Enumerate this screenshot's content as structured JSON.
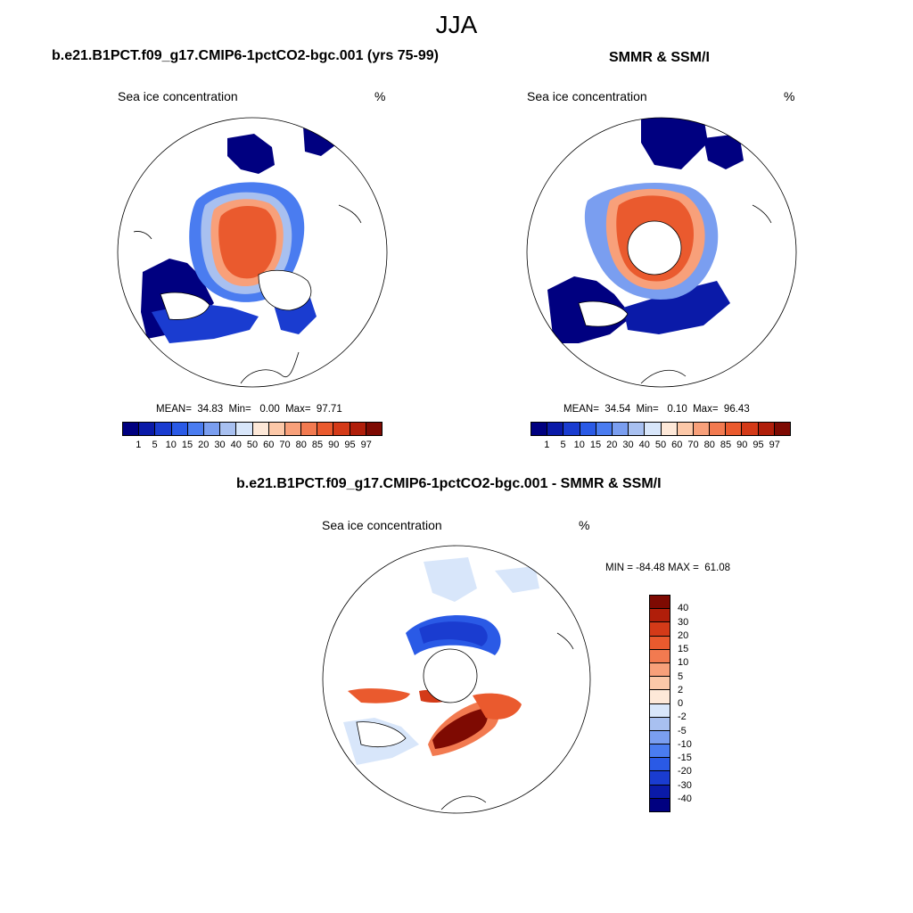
{
  "figure_title": "JJA",
  "panel_a": {
    "title": "b.e21.B1PCT.f09_g17.CMIP6-1pctCO2-bgc.001 (yrs 75-99)",
    "variable": "Sea ice concentration",
    "units": "%",
    "stats": "MEAN=  34.83  Min=   0.00  Max=  97.71"
  },
  "panel_b": {
    "title": "SMMR & SSM/I",
    "variable": "Sea ice concentration",
    "units": "%",
    "stats": "MEAN=  34.54  Min=   0.10  Max=  96.43"
  },
  "panel_c": {
    "title": "b.e21.B1PCT.f09_g17.CMIP6-1pctCO2-bgc.001 - SMMR & SSM/I",
    "variable": "Sea ice concentration",
    "units": "%",
    "stats": "MIN = -84.48 MAX =  61.08"
  },
  "colorbar_abs": {
    "colors": [
      "#000080",
      "#0a1aa8",
      "#1a3cd0",
      "#2a5ae6",
      "#4a7cf0",
      "#7a9ef0",
      "#a8c0f0",
      "#d8e6fa",
      "#fde8d8",
      "#fcc8a8",
      "#f8a07a",
      "#f27a50",
      "#ea5a2e",
      "#d43a18",
      "#b01e0a",
      "#7e0a02"
    ],
    "labels": [
      "1",
      "5",
      "10",
      "15",
      "20",
      "30",
      "40",
      "50",
      "60",
      "70",
      "80",
      "85",
      "90",
      "95",
      "97"
    ]
  },
  "colorbar_diff": {
    "colors": [
      "#7e0a02",
      "#b01e0a",
      "#d43a18",
      "#ea5a2e",
      "#f27a50",
      "#f8a07a",
      "#fcc8a8",
      "#fde8d8",
      "#d8e6fa",
      "#a8c0f0",
      "#7a9ef0",
      "#4a7cf0",
      "#2a5ae6",
      "#1a3cd0",
      "#0a1aa8",
      "#000080"
    ],
    "labels": [
      "40",
      "30",
      "20",
      "15",
      "10",
      "5",
      "2",
      "0",
      "-2",
      "-5",
      "-10",
      "-15",
      "-20",
      "-30",
      "-40"
    ]
  }
}
